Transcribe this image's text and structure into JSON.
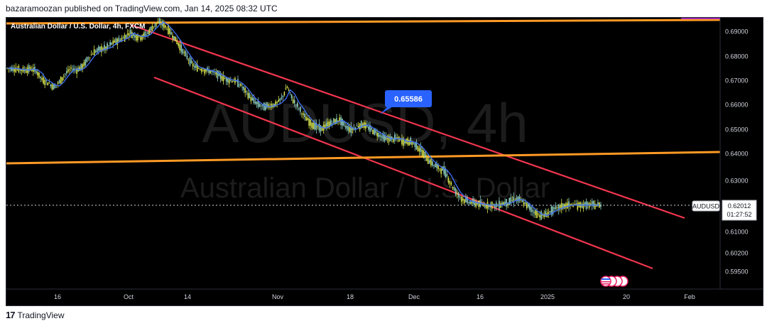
{
  "header": {
    "publish_text": "bazaramoozan published on TradingView.com, Jan 14, 2025 08:32 UTC"
  },
  "footer": {
    "brand": "TradingView",
    "logo_glyph": "17"
  },
  "chart": {
    "legend": "Australian Dollar / U.S. Dollar, 4h, FXCM",
    "watermark_symbol": "AUDUSD, 4h",
    "watermark_name": "Australian Dollar / U.S. Dollar",
    "callout_label": "0.65586",
    "symbol_tag": "AUDUSD",
    "price_tag": "0.62012",
    "countdown_tag": "01:27:52",
    "flags_icon": "us-flag-icon"
  },
  "chart_data": {
    "type": "line",
    "symbol": "AUDUSD",
    "timeframe": "4h",
    "broker": "FXCM",
    "y_ticks": [
      "0.69000",
      "0.68000",
      "0.67000",
      "0.66000",
      "0.65000",
      "0.64000",
      "0.63000",
      "0.62000",
      "0.61000",
      "0.60200",
      "0.59500"
    ],
    "x_ticks": [
      "16",
      "Oct",
      "14",
      "Nov",
      "18",
      "Dec",
      "16",
      "2025",
      "20",
      "Feb"
    ],
    "ylim": [
      0.5935,
      0.6995
    ],
    "series": [
      {
        "x": [
          0,
          4,
          8,
          12,
          16,
          20,
          24,
          28,
          32,
          36,
          40,
          44,
          48,
          52,
          56,
          60,
          64,
          68,
          72,
          76,
          80,
          84,
          88,
          92,
          96,
          100,
          104,
          108,
          112,
          116,
          120,
          124,
          128,
          132,
          136,
          140,
          144,
          148,
          152,
          156,
          160,
          164,
          168,
          172,
          176,
          180,
          184,
          188,
          192,
          196,
          200,
          204,
          208,
          212,
          216,
          220,
          224,
          228,
          232,
          236,
          240,
          244,
          248,
          252,
          256,
          260,
          264,
          268,
          272,
          276,
          280,
          284,
          288,
          292,
          296,
          300,
          304,
          308,
          312,
          316,
          320,
          324,
          328,
          332,
          336,
          340,
          344,
          348,
          352,
          356,
          360,
          364,
          368,
          372,
          376,
          380,
          384,
          388,
          392,
          396,
          400,
          404,
          408
        ],
        "values": [
          0.675,
          0.6748,
          0.6745,
          0.6742,
          0.6748,
          0.6738,
          0.6702,
          0.669,
          0.6672,
          0.6693,
          0.6728,
          0.6748,
          0.6742,
          0.6758,
          0.6795,
          0.6818,
          0.6828,
          0.6832,
          0.6852,
          0.6862,
          0.6872,
          0.6895,
          0.688,
          0.6878,
          0.6889,
          0.6918,
          0.6938,
          0.6923,
          0.6895,
          0.6862,
          0.6825,
          0.679,
          0.6758,
          0.6748,
          0.6742,
          0.6736,
          0.6725,
          0.671,
          0.67,
          0.6698,
          0.668,
          0.665,
          0.662,
          0.66,
          0.659,
          0.6595,
          0.66,
          0.6622,
          0.6672,
          0.6618,
          0.6585,
          0.655,
          0.6525,
          0.651,
          0.6502,
          0.652,
          0.653,
          0.6538,
          0.6512,
          0.6498,
          0.6512,
          0.652,
          0.6505,
          0.649,
          0.6474,
          0.6461,
          0.646,
          0.6462,
          0.6448,
          0.645,
          0.6436,
          0.641,
          0.638,
          0.636,
          0.6345,
          0.6335,
          0.629,
          0.625,
          0.6225,
          0.6215,
          0.621,
          0.6205,
          0.62,
          0.6202,
          0.6198,
          0.6208,
          0.6212,
          0.6225,
          0.622,
          0.6202,
          0.618,
          0.6165,
          0.616,
          0.6175,
          0.6186,
          0.6195,
          0.6201,
          0.6201,
          0.6201,
          0.6201,
          0.6201,
          0.6201,
          0.6201
        ],
        "name": ""
      }
    ],
    "annotations": [
      {
        "type": "price_label",
        "value": 0.65586
      },
      {
        "type": "last_price",
        "value": 0.62012
      }
    ],
    "grid": false,
    "legend": "top-left"
  }
}
